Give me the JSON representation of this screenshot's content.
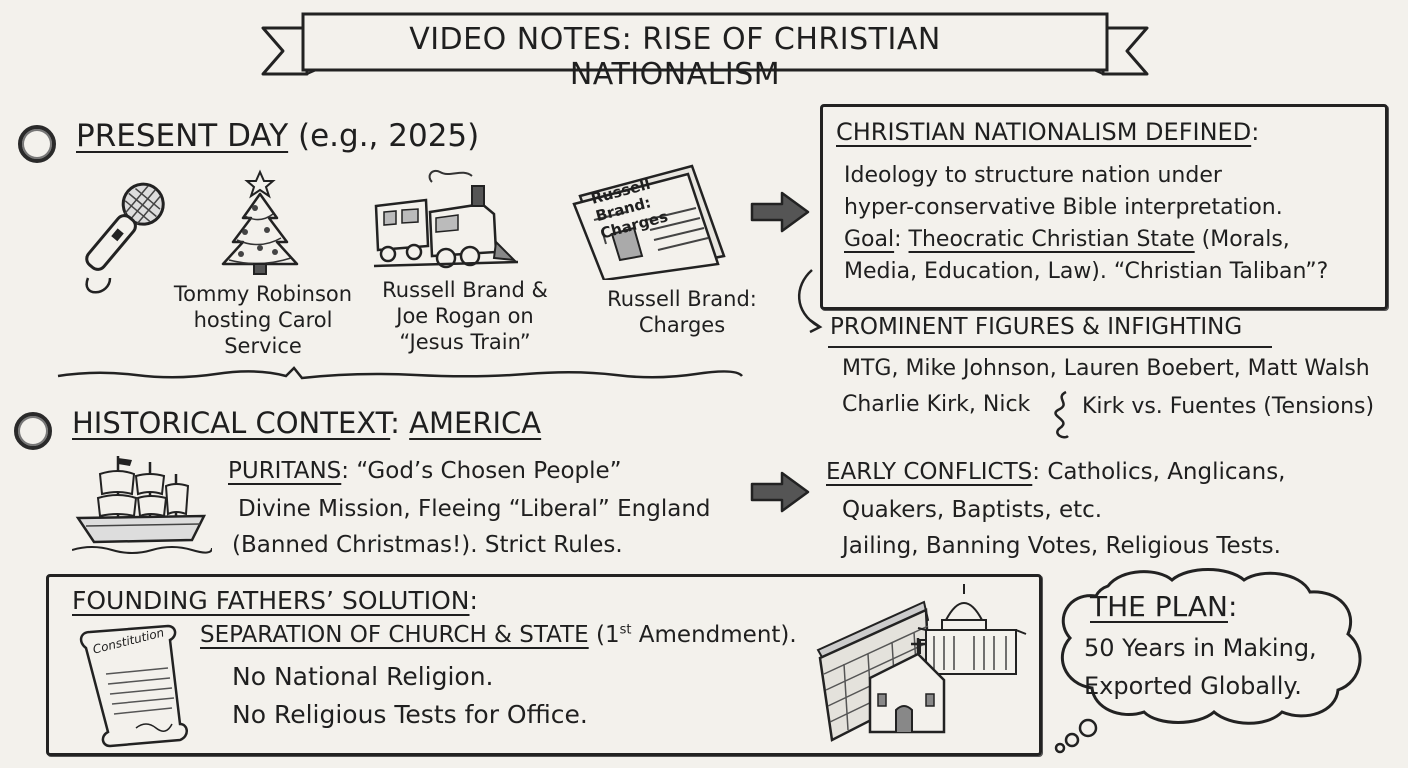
{
  "title": "VIDEO NOTES: RISE OF CHRISTIAN NATIONALISM",
  "present": {
    "heading": "PRESENT DAY",
    "heading_suffix": "(e.g., 2025)",
    "items": [
      {
        "icon": "microphone-icon",
        "caption": ""
      },
      {
        "icon": "christmas-tree-icon",
        "caption": "Tommy Robinson hosting Carol Service"
      },
      {
        "icon": "train-icon",
        "caption": "Russell Brand & Joe Rogan on “Jesus Train”"
      },
      {
        "icon": "newspaper-icon",
        "caption": "Russell Brand: Charges",
        "newspaper_headline": "Russell Brand: Charges"
      }
    ]
  },
  "definition": {
    "heading": "CHRISTIAN NATIONALISM DEFINED",
    "heading_colon": ":",
    "line1": "Ideology to structure nation under",
    "line2": "hyper-conservative Bible interpretation.",
    "goal_label": "Goal",
    "goal_colon": ":",
    "goal_value": "Theocratic Christian State",
    "goal_rest": "(Morals,",
    "line4": "Media, Education, Law). “Christian Taliban”?"
  },
  "figures": {
    "heading": "PROMINENT FIGURES & INFIGHTING",
    "line1": "MTG, Mike Johnson, Lauren Boebert, Matt Walsh",
    "line2a": "Charlie Kirk, Nick",
    "line2b": "Kirk vs. Fuentes (Tensions)"
  },
  "history": {
    "heading": "HISTORICAL CONTEXT",
    "heading_colon": ":",
    "heading_place": "AMERICA",
    "puritans_label": "PURITANS",
    "puritans_rest": ": “God’s Chosen People”",
    "line2": "Divine Mission, Fleeing “Liberal” England",
    "line3": "(Banned Christmas!). Strict Rules."
  },
  "conflicts": {
    "heading": "EARLY CONFLICTS",
    "heading_rest": ": Catholics, Anglicans,",
    "line2": "Quakers, Baptists, etc.",
    "line3": "Jailing, Banning Votes, Religious Tests."
  },
  "founders": {
    "heading": "FOUNDING FATHERS’ SOLUTION",
    "heading_colon": ":",
    "separation": "SEPARATION OF CHURCH & STATE",
    "amend_pre": "(1",
    "amend_sup": "st",
    "amend_post": " Amendment).",
    "line2": "No National Religion.",
    "line3": "No Religious Tests for Office.",
    "scroll_label": "Constitution"
  },
  "plan": {
    "heading": "THE PLAN",
    "heading_colon": ":",
    "line1": "50 Years in Making,",
    "line2": "Exported Globally."
  }
}
